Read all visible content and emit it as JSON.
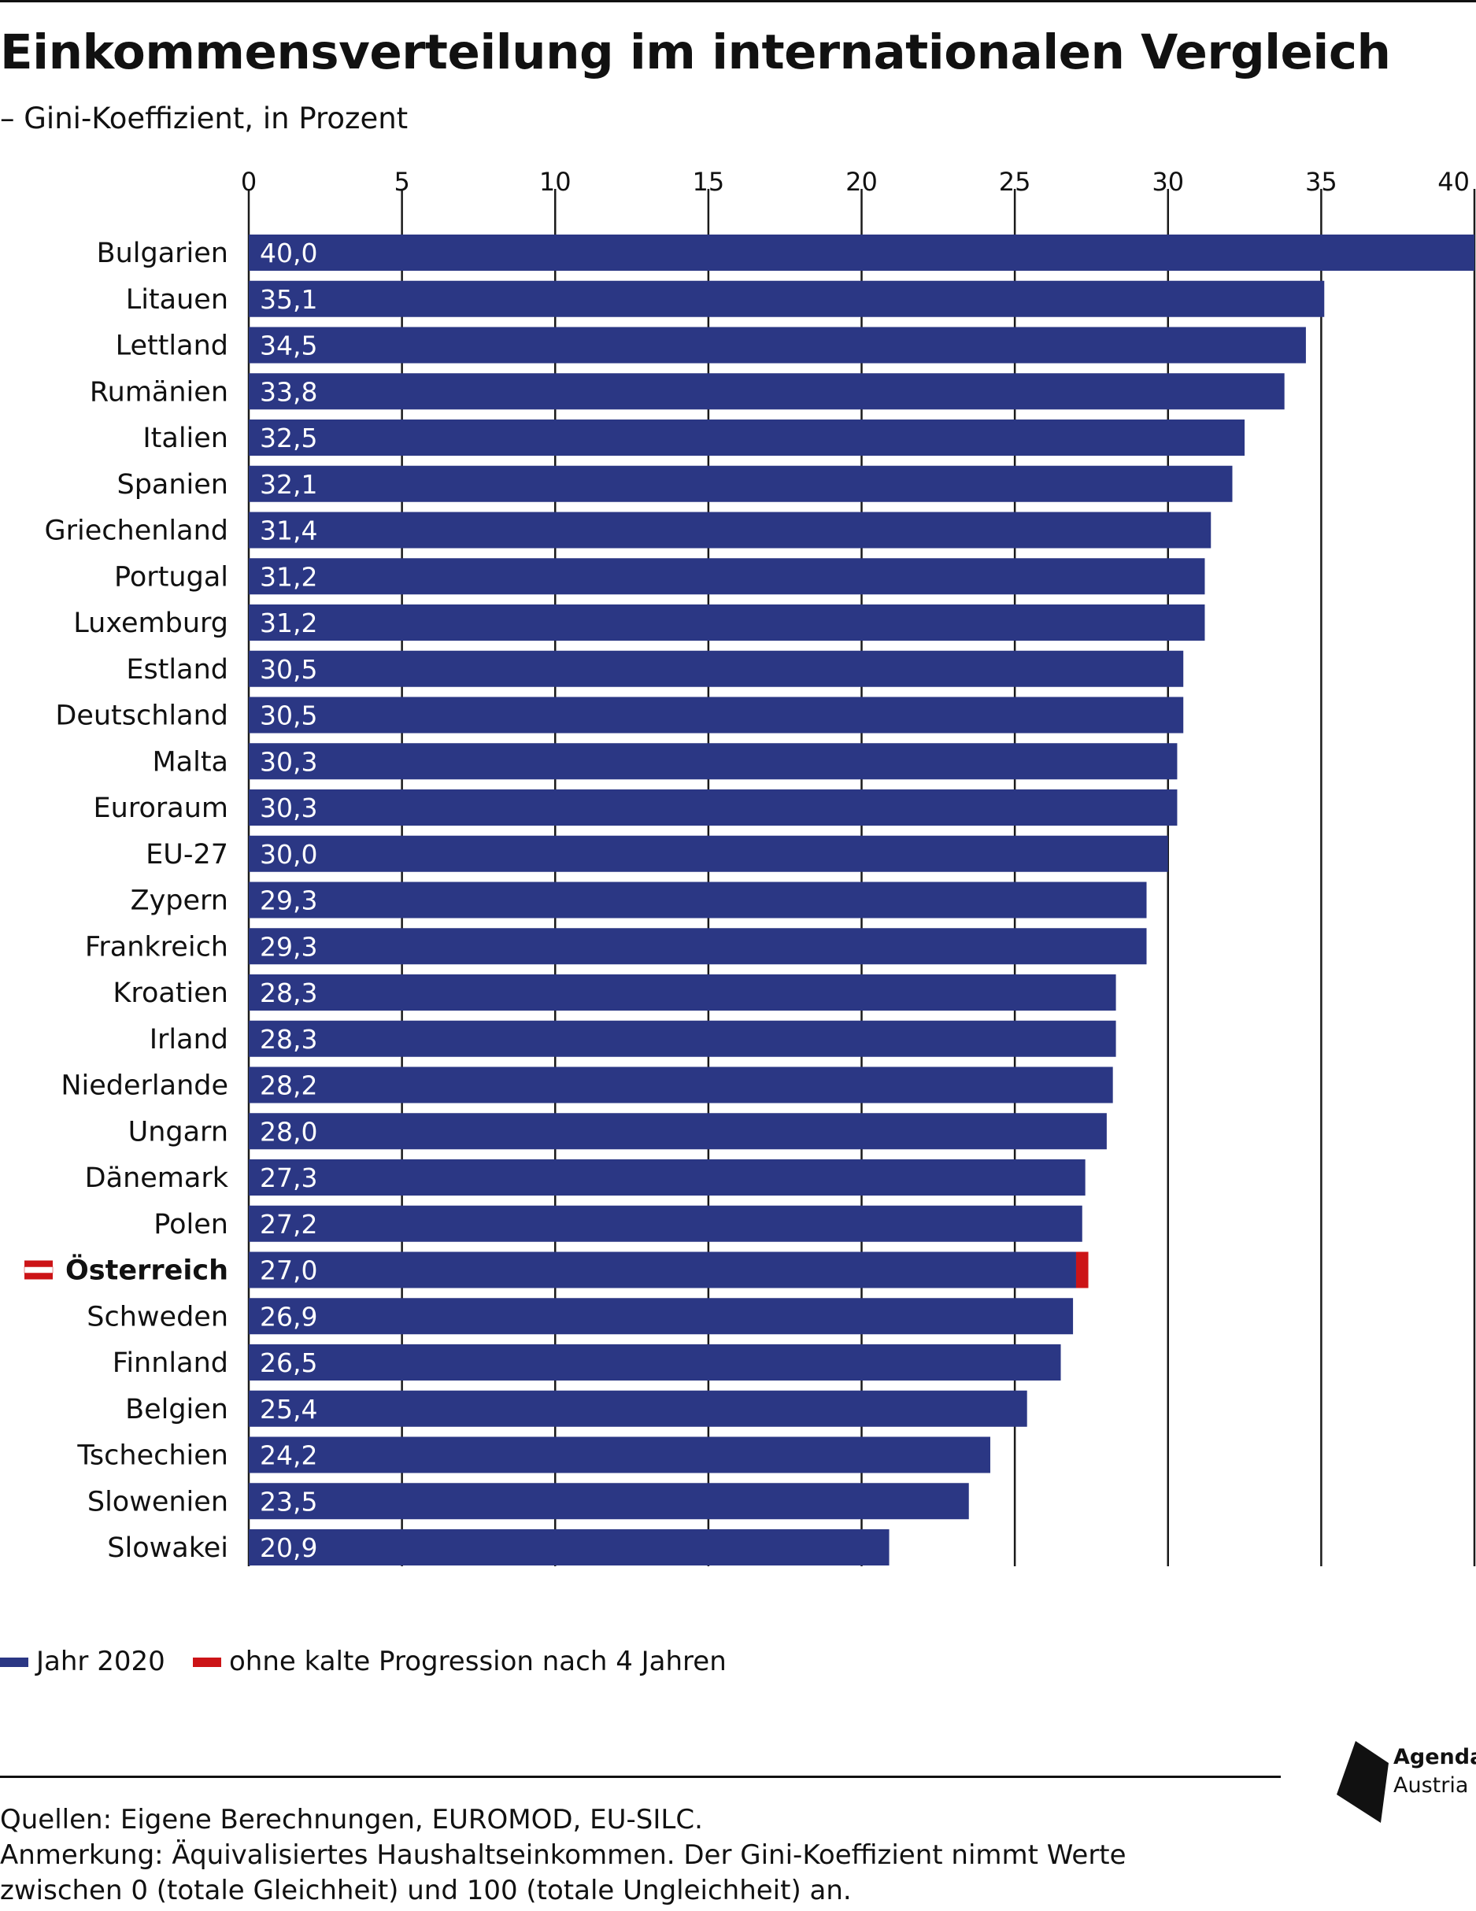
{
  "title": "Einkommensverteilung im internationalen Vergleich",
  "subtitle": "– Gini-Koeffizient, in Prozent",
  "chart_data": {
    "type": "bar",
    "orientation": "horizontal",
    "stacked": true,
    "xlim": [
      0,
      40
    ],
    "x_ticks": [
      "0",
      "5",
      "10",
      "15",
      "20",
      "25",
      "30",
      "35",
      "40"
    ],
    "grid": true,
    "legend_position": "bottom-left",
    "categories": [
      "Bulgarien",
      "Litauen",
      "Lettland",
      "Rumänien",
      "Italien",
      "Spanien",
      "Griechenland",
      "Portugal",
      "Luxemburg",
      "Estland",
      "Deutschland",
      "Malta",
      "Euroraum",
      "EU-27",
      "Zypern",
      "Frankreich",
      "Kroatien",
      "Irland",
      "Niederlande",
      "Ungarn",
      "Dänemark",
      "Polen",
      "Österreich",
      "Schweden",
      "Finnland",
      "Belgien",
      "Tschechien",
      "Slowenien",
      "Slowakei"
    ],
    "highlight_category": "Österreich",
    "series": [
      {
        "name": "Jahr 2020",
        "color": "#2b3784",
        "values": [
          40.0,
          35.1,
          34.5,
          33.8,
          32.5,
          32.1,
          31.4,
          31.2,
          31.2,
          30.5,
          30.5,
          30.3,
          30.3,
          30.0,
          29.3,
          29.3,
          28.3,
          28.3,
          28.2,
          28.0,
          27.3,
          27.2,
          27.0,
          26.9,
          26.5,
          25.4,
          24.2,
          23.5,
          20.9
        ],
        "labels": [
          "40,0",
          "35,1",
          "34,5",
          "33,8",
          "32,5",
          "32,1",
          "31,4",
          "31,2",
          "31,2",
          "30,5",
          "30,5",
          "30,3",
          "30,3",
          "30,0",
          "29,3",
          "29,3",
          "28,3",
          "28,3",
          "28,2",
          "28,0",
          "27,3",
          "27,2",
          "27,0",
          "26,9",
          "26,5",
          "25,4",
          "24,2",
          "23,5",
          "20,9"
        ]
      },
      {
        "name": "ohne kalte Progression nach 4 Jahren",
        "color": "#cc1417",
        "values": [
          null,
          null,
          null,
          null,
          null,
          null,
          null,
          null,
          null,
          null,
          null,
          null,
          null,
          null,
          null,
          null,
          null,
          null,
          null,
          null,
          null,
          null,
          0.4,
          null,
          null,
          null,
          null,
          null,
          null
        ]
      }
    ]
  },
  "legend": [
    {
      "label": "Jahr 2020",
      "color": "#2b3784"
    },
    {
      "label": "ohne kalte Progression nach 4 Jahren",
      "color": "#cc1417"
    }
  ],
  "flag_colors": [
    "#cc1417",
    "#ffffff"
  ],
  "logo": {
    "name": "Agenda",
    "sub": "Austria"
  },
  "notes": {
    "sources": "Quellen: Eigene Berechnungen, EUROMOD, EU-SILC.",
    "note_line1": "Anmerkung: Äquivalisiertes Haushaltseinkommen. Der Gini-Koeffizient nimmt Werte",
    "note_line2": "zwischen 0 (totale Gleichheit) und 100 (totale Ungleichheit) an."
  }
}
